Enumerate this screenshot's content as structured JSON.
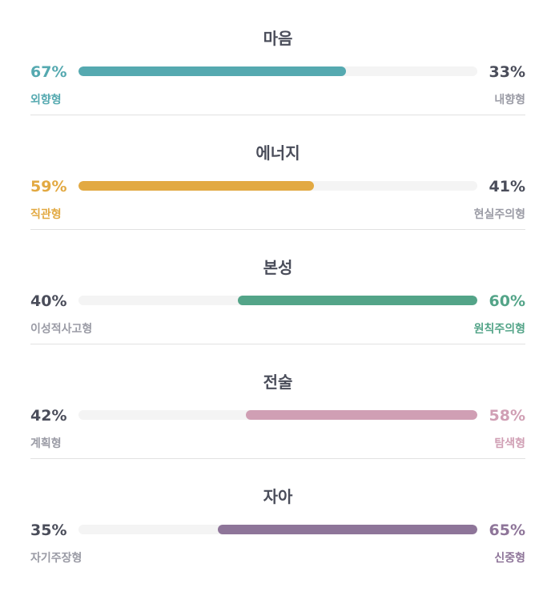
{
  "traits": [
    {
      "title": "마음",
      "left": {
        "percent": "67%",
        "label": "외향형"
      },
      "right": {
        "percent": "33%",
        "label": "내향형"
      },
      "dominant": "left",
      "dominant_value": 67,
      "color": "#55a9b0"
    },
    {
      "title": "에너지",
      "left": {
        "percent": "59%",
        "label": "직관형"
      },
      "right": {
        "percent": "41%",
        "label": "현실주의형"
      },
      "dominant": "left",
      "dominant_value": 59,
      "color": "#e2a942"
    },
    {
      "title": "본성",
      "left": {
        "percent": "40%",
        "label": "이성적사고형"
      },
      "right": {
        "percent": "60%",
        "label": "원칙주의형"
      },
      "dominant": "right",
      "dominant_value": 60,
      "color": "#53a488"
    },
    {
      "title": "전술",
      "left": {
        "percent": "42%",
        "label": "계획형"
      },
      "right": {
        "percent": "58%",
        "label": "탐색형"
      },
      "dominant": "right",
      "dominant_value": 58,
      "color": "#d09fb4"
    },
    {
      "title": "자아",
      "left": {
        "percent": "35%",
        "label": "자기주장형"
      },
      "right": {
        "percent": "65%",
        "label": "신중형"
      },
      "dominant": "right",
      "dominant_value": 65,
      "color": "#8e7599"
    }
  ],
  "neutral_text_color": "#4a4d5a",
  "neutral_label_color": "#9a9ba5"
}
